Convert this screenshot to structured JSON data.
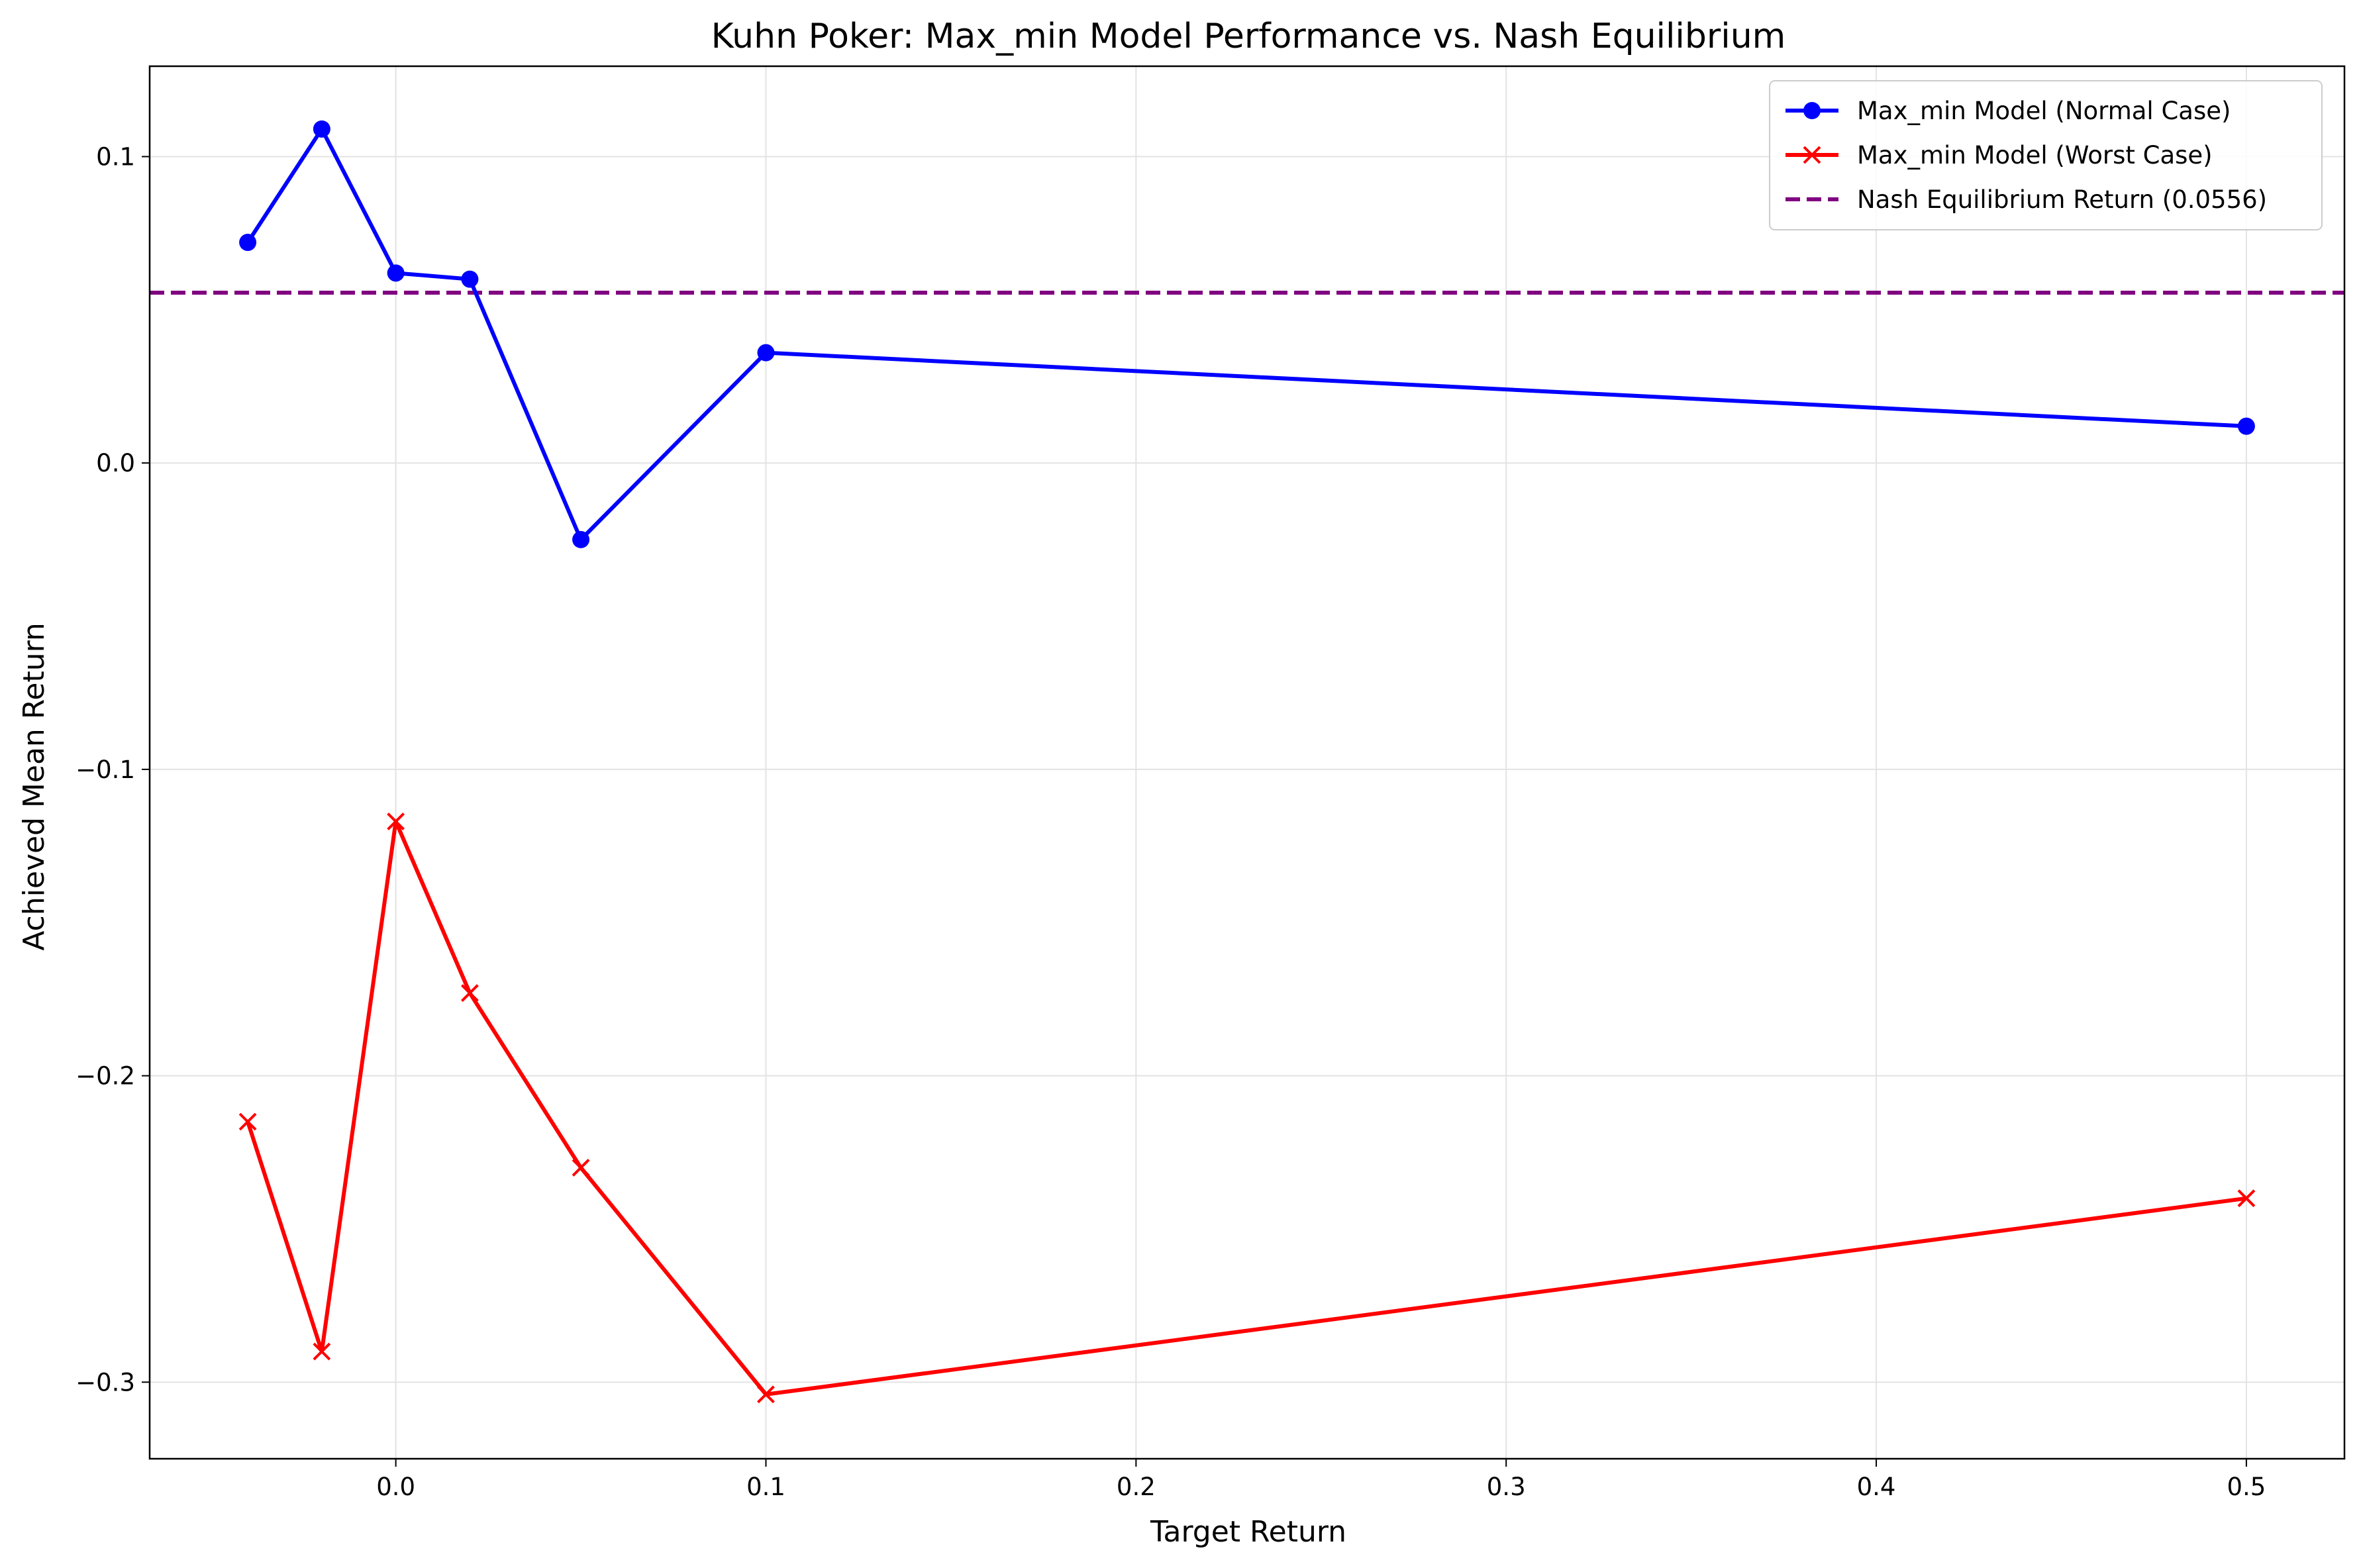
{
  "chart_data": {
    "type": "line",
    "title": "Kuhn Poker: Max_min Model Performance vs. Nash Equilibrium",
    "xlabel": "Target Return",
    "ylabel": "Achieved Mean Return",
    "xlim": [
      -0.0665,
      0.5265
    ],
    "ylim": [
      -0.325,
      0.1295
    ],
    "xticks": [
      0.0,
      0.1,
      0.2,
      0.3,
      0.4,
      0.5
    ],
    "xtick_labels": [
      "0.0",
      "0.1",
      "0.2",
      "0.3",
      "0.4",
      "0.5"
    ],
    "yticks": [
      -0.3,
      -0.2,
      -0.1,
      0.0,
      0.1
    ],
    "ytick_labels": [
      "−0.3",
      "−0.2",
      "−0.1",
      "0.0",
      "0.1"
    ],
    "grid": true,
    "legend_position": "top-right",
    "x": [
      -0.04,
      -0.02,
      0.0,
      0.02,
      0.05,
      0.1,
      0.5
    ],
    "series": [
      {
        "name": "Max_min Model (Normal Case)",
        "values": [
          0.072,
          0.109,
          0.062,
          0.06,
          -0.025,
          0.036,
          0.012
        ],
        "color": "#0000ff",
        "marker": "circle",
        "linestyle": "solid"
      },
      {
        "name": "Max_min Model (Worst Case)",
        "values": [
          -0.215,
          -0.29,
          -0.117,
          -0.173,
          -0.23,
          -0.304,
          -0.24
        ],
        "color": "#ff0000",
        "marker": "x",
        "linestyle": "solid"
      }
    ],
    "reference_lines": [
      {
        "name": "Nash Equilibrium Return (0.0556)",
        "y": 0.0556,
        "color": "#800080",
        "linestyle": "dashed"
      }
    ]
  }
}
